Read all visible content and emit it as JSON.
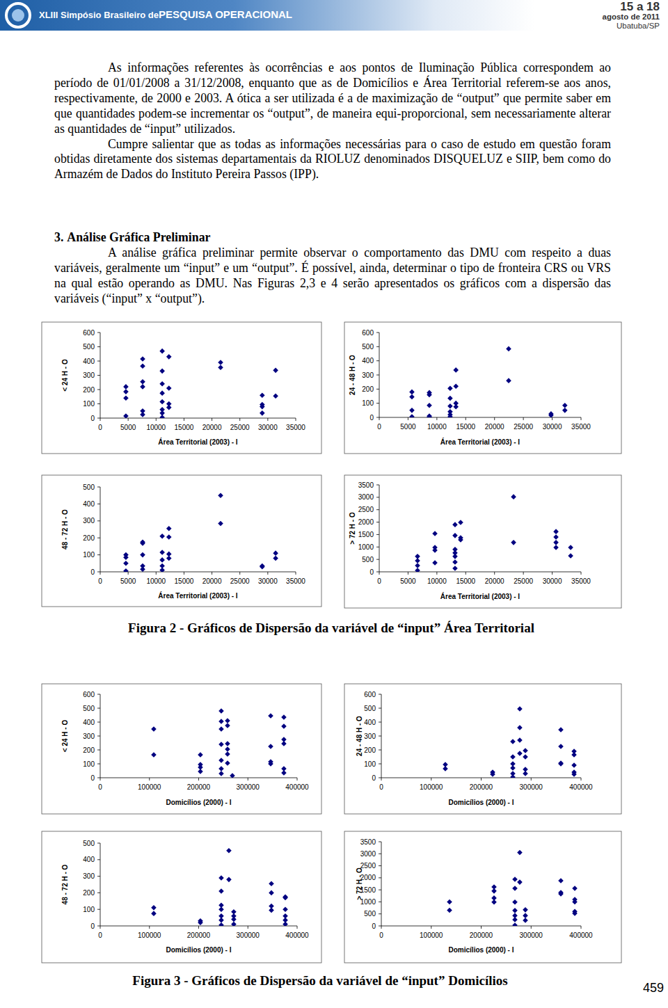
{
  "header": {
    "event_prefix": "XLIII Simpósio Brasileiro de",
    "event_name": "PESQUISA OPERACIONAL",
    "dates": "15 a 18",
    "month": "agosto de 2011",
    "place": "Ubatuba/SP"
  },
  "paragraphs": [
    "As informações referentes às ocorrências e aos pontos de Iluminação Pública correspondem ao período de 01/01/2008 a 31/12/2008, enquanto que as de Domicílios e Área Territorial referem-se aos anos, respectivamente, de 2000 e 2003. A ótica a ser utilizada é a de maximização de “output” que permite saber em que quantidades podem-se incrementar os “output”, de maneira equi-proporcional, sem necessariamente alterar as quantidades de “input” utilizados.",
    "Cumpre salientar que as todas as informações necessárias para o caso de estudo em questão foram obtidas diretamente dos sistemas departamentais da RIOLUZ denominados DISQUELUZ e SIIP, bem como do Armazém de Dados do Instituto Pereira Passos (IPP)."
  ],
  "section": {
    "number": "3.",
    "title": "Análise Gráfica Preliminar",
    "paragraph": "A análise gráfica preliminar permite observar o comportamento das DMU com respeito a duas variáveis, geralmente um “input” e um “output”. É possível, ainda, determinar o tipo de fronteira CRS ou VRS na qual estão operando as DMU. Nas Figuras 2,3 e 4 serão apresentados os gráficos com a dispersão das variáveis (“input” x “output”)."
  },
  "chart_data": [
    {
      "type": "scatter",
      "x_label": "Área Territorial (2003) - I",
      "y_label": "< 24 H - O",
      "color": "#000080",
      "marker": "diamond",
      "x": [
        4600,
        4600,
        4600,
        4600,
        7600,
        7600,
        7600,
        7600,
        7600,
        7600,
        11100,
        11100,
        11100,
        11100,
        11100,
        11100,
        11100,
        11100,
        12300,
        12300,
        12300,
        12300,
        21550,
        21550,
        29000,
        29000,
        29000,
        29000,
        31400,
        31400
      ],
      "values": [
        220,
        185,
        140,
        15,
        415,
        365,
        255,
        220,
        50,
        25,
        470,
        330,
        240,
        175,
        115,
        60,
        35,
        5,
        430,
        210,
        100,
        75,
        390,
        355,
        160,
        95,
        80,
        35,
        335,
        155
      ],
      "xlim": [
        0,
        35000
      ],
      "xticks": [
        0,
        5000,
        10000,
        15000,
        20000,
        25000,
        30000,
        35000
      ],
      "ylim": [
        0,
        600
      ],
      "yticks": [
        0,
        100,
        200,
        300,
        400,
        500,
        600
      ]
    },
    {
      "type": "scatter",
      "x_label": "Área Territorial (2003) - I",
      "y_label": "24 - 48 H - O",
      "color": "#000080",
      "marker": "diamond",
      "x": [
        5670,
        5670,
        5670,
        5670,
        8690,
        8690,
        8690,
        8690,
        8690,
        12300,
        12300,
        12300,
        12300,
        12300,
        12300,
        13300,
        13300,
        13300,
        13300,
        22450,
        22450,
        29800,
        29800,
        32200,
        32200
      ],
      "values": [
        180,
        145,
        50,
        5,
        175,
        160,
        85,
        10,
        2,
        205,
        135,
        80,
        40,
        20,
        5,
        335,
        220,
        100,
        75,
        485,
        260,
        25,
        15,
        85,
        50
      ],
      "xlim": [
        0,
        35000
      ],
      "xticks": [
        0,
        5000,
        10000,
        15000,
        20000,
        25000,
        30000,
        35000
      ],
      "ylim": [
        0,
        600
      ],
      "yticks": [
        0,
        100,
        200,
        300,
        400,
        500,
        600
      ]
    },
    {
      "type": "scatter",
      "x_label": "Área Territorial (2003) - I",
      "y_label": "48 - 72 H - O",
      "color": "#000080",
      "marker": "diamond",
      "x": [
        4600,
        4600,
        4600,
        4600,
        7600,
        7600,
        7600,
        7600,
        7600,
        11100,
        11100,
        11100,
        11100,
        11100,
        12300,
        12300,
        12300,
        12300,
        21550,
        21550,
        29000,
        29000,
        31400,
        31400
      ],
      "values": [
        100,
        85,
        50,
        5,
        175,
        168,
        100,
        35,
        15,
        210,
        115,
        70,
        35,
        10,
        255,
        205,
        105,
        80,
        450,
        285,
        35,
        30,
        110,
        80
      ],
      "xlim": [
        0,
        35000
      ],
      "xticks": [
        0,
        5000,
        10000,
        15000,
        20000,
        25000,
        30000,
        35000
      ],
      "ylim": [
        0,
        500
      ],
      "yticks": [
        0,
        100,
        200,
        300,
        400,
        500
      ]
    },
    {
      "type": "scatter",
      "x_label": "Área Territorial (2003) - I",
      "y_label": "> 72 H - O",
      "color": "#000080",
      "marker": "diamond",
      "x": [
        6640,
        6640,
        6640,
        6640,
        9660,
        9660,
        9660,
        9660,
        13150,
        13150,
        13150,
        13150,
        13150,
        13150,
        13150,
        14120,
        14120,
        14120,
        23300,
        23300,
        30660,
        30660,
        30660,
        30660,
        33200,
        33200
      ],
      "values": [
        620,
        450,
        250,
        55,
        1540,
        980,
        870,
        365,
        1900,
        1460,
        900,
        760,
        620,
        390,
        140,
        1990,
        1370,
        1290,
        3020,
        1180,
        1620,
        1400,
        1180,
        980,
        980,
        645
      ],
      "xlim": [
        0,
        35000
      ],
      "xticks": [
        0,
        5000,
        10000,
        15000,
        20000,
        25000,
        30000,
        35000
      ],
      "ylim": [
        0,
        3500
      ],
      "yticks": [
        0,
        500,
        1000,
        1500,
        2000,
        2500,
        3000,
        3500
      ]
    },
    {
      "type": "scatter",
      "x_label": "Domicílios (2000) - I",
      "y_label": "< 24 H - O",
      "color": "#000080",
      "marker": "diamond",
      "x": [
        108800,
        108800,
        203500,
        203500,
        203500,
        203500,
        245900,
        245900,
        245900,
        245900,
        245900,
        245900,
        245900,
        258600,
        258600,
        258600,
        258600,
        258600,
        258600,
        268500,
        346300,
        346300,
        346300,
        346300,
        373100,
        373100,
        373100,
        373100,
        373100,
        373100
      ],
      "values": [
        350,
        165,
        165,
        95,
        75,
        45,
        480,
        405,
        350,
        240,
        125,
        65,
        30,
        410,
        375,
        245,
        205,
        170,
        105,
        15,
        445,
        225,
        115,
        100,
        435,
        370,
        275,
        245,
        65,
        35
      ],
      "xlim": [
        0,
        400000
      ],
      "xticks": [
        0,
        100000,
        200000,
        300000,
        400000
      ],
      "ylim": [
        0,
        600
      ],
      "yticks": [
        0,
        100,
        200,
        300,
        400,
        500,
        600
      ]
    },
    {
      "type": "scatter",
      "x_label": "Domicílios (2000) - I",
      "y_label": "24 - 48 H - O",
      "color": "#000080",
      "marker": "diamond",
      "x": [
        128200,
        128200,
        223000,
        223000,
        263400,
        263400,
        263400,
        263400,
        263400,
        263400,
        277300,
        277300,
        277300,
        277300,
        288500,
        288500,
        288500,
        288500,
        359600,
        359600,
        359600,
        359600,
        386100,
        386100,
        386100,
        386100,
        386100
      ],
      "values": [
        95,
        65,
        40,
        25,
        260,
        150,
        100,
        70,
        30,
        5,
        495,
        360,
        270,
        175,
        195,
        150,
        60,
        30,
        345,
        225,
        105,
        100,
        190,
        165,
        90,
        40,
        25
      ],
      "xlim": [
        0,
        400000
      ],
      "xticks": [
        0,
        100000,
        200000,
        300000,
        400000
      ],
      "ylim": [
        0,
        600
      ],
      "yticks": [
        0,
        100,
        200,
        300,
        400,
        500,
        600
      ]
    },
    {
      "type": "scatter",
      "x_label": "Domicílios (2000) - I",
      "y_label": "48 - 72 H - O",
      "color": "#000080",
      "marker": "diamond",
      "x": [
        108800,
        108800,
        203500,
        203500,
        245900,
        245900,
        245900,
        245900,
        245900,
        245900,
        245900,
        261400,
        261400,
        271300,
        271300,
        271300,
        271300,
        347700,
        347700,
        347700,
        347700,
        376000,
        376000,
        376000,
        376000,
        376000,
        376000
      ],
      "values": [
        110,
        75,
        30,
        20,
        290,
        210,
        125,
        100,
        60,
        35,
        5,
        455,
        280,
        85,
        60,
        40,
        10,
        255,
        200,
        120,
        95,
        175,
        170,
        100,
        60,
        35,
        10
      ],
      "xlim": [
        0,
        400000
      ],
      "xticks": [
        0,
        100000,
        200000,
        300000,
        400000
      ],
      "ylim": [
        0,
        500
      ],
      "yticks": [
        0,
        100,
        200,
        300,
        400,
        500
      ]
    },
    {
      "type": "scatter",
      "x_label": "Domicílios (2000) - I",
      "y_label": "> 72 H - O",
      "color": "#000080",
      "marker": "diamond",
      "x": [
        136600,
        136600,
        225800,
        225800,
        225800,
        225800,
        267600,
        267600,
        267600,
        267600,
        267600,
        267600,
        267600,
        277300,
        277300,
        288500,
        288500,
        288500,
        359600,
        359600,
        359600,
        387500,
        387500,
        387500,
        387500,
        387500
      ],
      "values": [
        1000,
        650,
        1620,
        1450,
        1160,
        990,
        1940,
        1560,
        990,
        640,
        430,
        260,
        30,
        3050,
        1820,
        670,
        430,
        230,
        1880,
        1390,
        1330,
        1560,
        1100,
        1000,
        600,
        520
      ],
      "xlim": [
        0,
        400000
      ],
      "xticks": [
        0,
        100000,
        200000,
        300000,
        400000
      ],
      "ylim": [
        0,
        3500
      ],
      "yticks": [
        0,
        500,
        1000,
        1500,
        2000,
        2500,
        3000,
        3500
      ]
    }
  ],
  "figures": [
    {
      "caption": "Figura 2 - Gráficos de Dispersão da variável de “input” Área Territorial"
    },
    {
      "caption": "Figura 3 - Gráficos de Dispersão da variável de “input” Domicílios"
    }
  ],
  "page_number": 459
}
